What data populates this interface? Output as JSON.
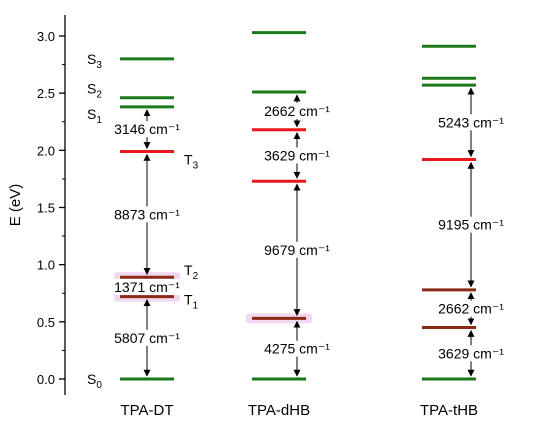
{
  "chart_data": {
    "type": "energy-level-diagram",
    "title": "",
    "ylabel": "E (eV)",
    "ylim": [
      -0.1,
      3.2
    ],
    "yticks": [
      "0.0",
      "0.5",
      "1.0",
      "1.5",
      "2.0",
      "2.5",
      "3.0"
    ],
    "yticks_values": [
      0.0,
      0.5,
      1.0,
      1.5,
      2.0,
      2.5,
      3.0
    ],
    "grid": false,
    "colors": {
      "singlet": "#1a7a1a",
      "triplet_red": "#e8181c",
      "triplet_brown": "#8b2a12",
      "highlight": "#e6b8e6"
    },
    "columns": [
      {
        "name": "TPA-DT",
        "levels": [
          {
            "label": "S0",
            "label_main": "S",
            "label_sub": "0",
            "energy": 0.0,
            "color": "singlet"
          },
          {
            "label": "S1",
            "label_main": "S",
            "label_sub": "1",
            "energy": 2.38,
            "color": "singlet"
          },
          {
            "label": "S2",
            "label_main": "S",
            "label_sub": "2",
            "energy": 2.46,
            "color": "singlet"
          },
          {
            "label": "S3",
            "label_main": "S",
            "label_sub": "3",
            "energy": 2.8,
            "color": "singlet"
          },
          {
            "label": "T1",
            "label_main": "T",
            "label_sub": "1",
            "energy": 0.72,
            "color": "triplet_brown",
            "highlight": true
          },
          {
            "label": "T2",
            "label_main": "T",
            "label_sub": "2",
            "energy": 0.89,
            "color": "triplet_brown",
            "highlight": true
          },
          {
            "label": "T3",
            "label_main": "T",
            "label_sub": "3",
            "energy": 1.99,
            "color": "triplet_red"
          }
        ],
        "gaps": [
          {
            "from": 0.0,
            "to": 0.72,
            "text": "5807 cm⁻¹"
          },
          {
            "from": 0.72,
            "to": 0.89,
            "text": "1371 cm⁻¹"
          },
          {
            "from": 0.89,
            "to": 1.99,
            "text": "8873 cm⁻¹"
          },
          {
            "from": 1.99,
            "to": 2.38,
            "text": "3146 cm⁻¹"
          }
        ]
      },
      {
        "name": "TPA-dHB",
        "levels": [
          {
            "energy": 0.0,
            "color": "singlet"
          },
          {
            "energy": 0.53,
            "color": "triplet_brown",
            "highlight": true
          },
          {
            "energy": 1.73,
            "color": "triplet_red"
          },
          {
            "energy": 2.18,
            "color": "triplet_red"
          },
          {
            "energy": 2.51,
            "color": "singlet"
          },
          {
            "energy": 3.03,
            "color": "singlet"
          }
        ],
        "gaps": [
          {
            "from": 0.0,
            "to": 0.53,
            "text": "4275 cm⁻¹"
          },
          {
            "from": 0.53,
            "to": 1.73,
            "text": "9679 cm⁻¹"
          },
          {
            "from": 1.73,
            "to": 2.18,
            "text": "3629 cm⁻¹"
          },
          {
            "from": 2.18,
            "to": 2.51,
            "text": "2662 cm⁻¹"
          }
        ]
      },
      {
        "name": "TPA-tHB",
        "levels": [
          {
            "energy": 0.0,
            "color": "singlet"
          },
          {
            "energy": 0.45,
            "color": "triplet_brown"
          },
          {
            "energy": 0.78,
            "color": "triplet_brown"
          },
          {
            "energy": 1.92,
            "color": "triplet_red"
          },
          {
            "energy": 2.57,
            "color": "singlet"
          },
          {
            "energy": 2.63,
            "color": "singlet"
          },
          {
            "energy": 2.91,
            "color": "singlet"
          }
        ],
        "gaps": [
          {
            "from": 0.0,
            "to": 0.45,
            "text": "3629 cm⁻¹"
          },
          {
            "from": 0.45,
            "to": 0.78,
            "text": "2662 cm⁻¹"
          },
          {
            "from": 0.78,
            "to": 1.92,
            "text": "9195 cm⁻¹"
          },
          {
            "from": 1.92,
            "to": 2.57,
            "text": "5243 cm⁻¹"
          }
        ]
      }
    ]
  }
}
